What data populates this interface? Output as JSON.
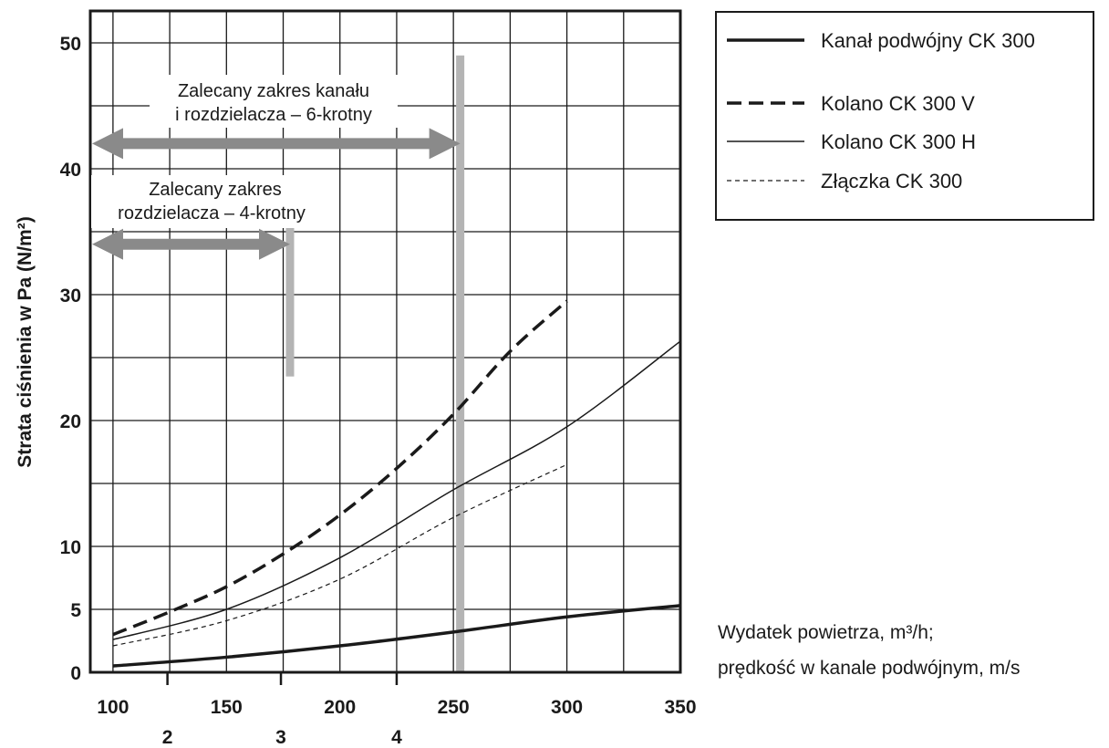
{
  "chart_data": {
    "type": "line",
    "xlabel_lines": [
      "Wydatek powietrza, m³/h;",
      "prędkość w kanale podwójnym, m/s"
    ],
    "ylabel": "Strata ciśnienia w Pa (N/m²)",
    "xlim": [
      90,
      350
    ],
    "ylim": [
      0,
      52
    ],
    "x_ticks": [
      "100",
      "150",
      "200",
      "250",
      "300",
      "350"
    ],
    "x_ticks_secondary": [
      {
        "label": "2",
        "at": 124
      },
      {
        "label": "3",
        "at": 174
      },
      {
        "label": "4",
        "at": 225
      }
    ],
    "y_ticks": [
      "0",
      "5",
      "10",
      "20",
      "30",
      "40",
      "50"
    ],
    "grid": true,
    "legend_position": "top-right",
    "series": [
      {
        "name": "Kanał podwójny CK 300",
        "style": "thick-solid",
        "x": [
          100,
          150,
          200,
          250,
          300,
          350
        ],
        "y": [
          0.5,
          1.2,
          2.1,
          3.2,
          4.4,
          5.3
        ]
      },
      {
        "name": "Kolano CK 300 V",
        "style": "thick-dashed",
        "x": [
          100,
          125,
          150,
          175,
          200,
          225,
          250,
          275,
          300
        ],
        "y": [
          3.0,
          4.8,
          6.8,
          9.4,
          12.5,
          16.2,
          20.5,
          25.5,
          29.5
        ]
      },
      {
        "name": "Kolano CK 300 H",
        "style": "thin-solid",
        "x": [
          100,
          150,
          200,
          250,
          300,
          350
        ],
        "y": [
          2.6,
          5.0,
          9.1,
          14.5,
          19.5,
          26.3
        ]
      },
      {
        "name": "Złączka CK 300",
        "style": "thin-dashed",
        "x": [
          100,
          150,
          200,
          250,
          300
        ],
        "y": [
          2.1,
          4.1,
          7.4,
          12.3,
          16.5
        ]
      }
    ],
    "annotations": [
      {
        "lines": [
          "Zalecany zakres kanału",
          "i rozdzielacza – 6-krotny"
        ]
      },
      {
        "lines": [
          "Zalecany zakres",
          "rozdzielacza – 4-krotny"
        ]
      }
    ],
    "ranges": [
      {
        "name": "6-krotny",
        "x_from": 90,
        "x_to": 253,
        "arrow_y": 42
      },
      {
        "name": "4-krotny",
        "x_from": 90,
        "x_to": 178,
        "arrow_y": 34
      }
    ],
    "marker_lines": [
      {
        "x": 178,
        "y_from": 23.5,
        "y_to": 37.5
      },
      {
        "x": 253,
        "y_from": 0,
        "y_to": 49
      }
    ]
  },
  "colors": {
    "curve": "#1a1a1a",
    "grid": "#1a1a1a",
    "range_arrow": "#8a8a8a",
    "marker_line": "#b4b4b4"
  }
}
